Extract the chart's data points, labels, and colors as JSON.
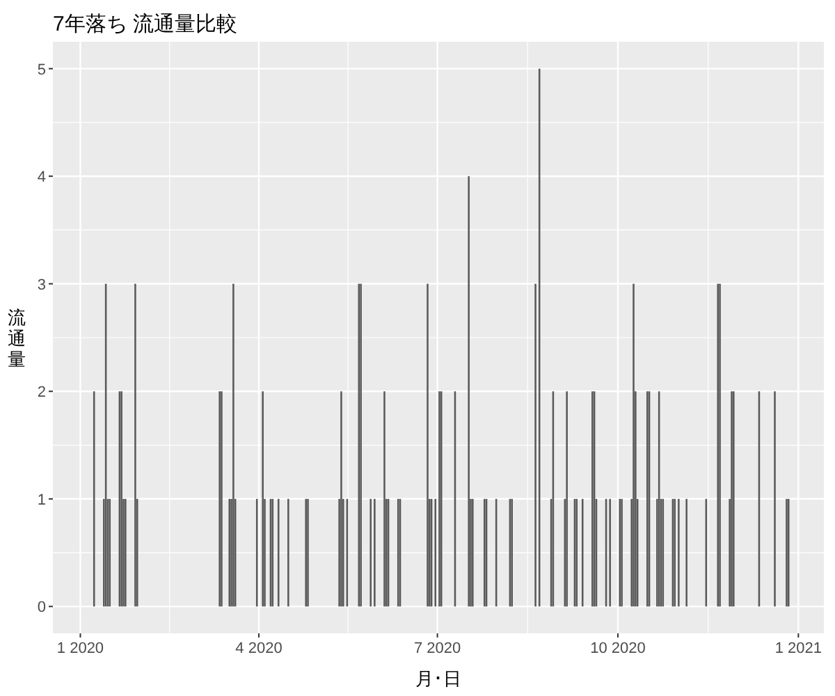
{
  "chart_data": {
    "type": "bar",
    "title": "7年落ち 流通量比較",
    "xlabel": "月･日",
    "ylabel": "流通量",
    "color": "#595959",
    "x": [
      "2020-01-08",
      "2020-01-13",
      "2020-01-14",
      "2020-01-15",
      "2020-01-16",
      "2020-01-21",
      "2020-01-22",
      "2020-01-23",
      "2020-01-24",
      "2020-01-29",
      "2020-01-30",
      "2020-03-12",
      "2020-03-13",
      "2020-03-17",
      "2020-03-18",
      "2020-03-19",
      "2020-03-20",
      "2020-03-31",
      "2020-04-03",
      "2020-04-04",
      "2020-04-07",
      "2020-04-08",
      "2020-04-11",
      "2020-04-16",
      "2020-04-25",
      "2020-04-26",
      "2020-05-12",
      "2020-05-13",
      "2020-05-14",
      "2020-05-16",
      "2020-05-22",
      "2020-05-23",
      "2020-05-28",
      "2020-05-30",
      "2020-06-04",
      "2020-06-05",
      "2020-06-06",
      "2020-06-11",
      "2020-06-12",
      "2020-06-26",
      "2020-06-27",
      "2020-06-28",
      "2020-06-30",
      "2020-07-02",
      "2020-07-03",
      "2020-07-10",
      "2020-07-17",
      "2020-07-18",
      "2020-07-19",
      "2020-07-25",
      "2020-07-26",
      "2020-07-31",
      "2020-08-07",
      "2020-08-08",
      "2020-08-20",
      "2020-08-22",
      "2020-08-28",
      "2020-08-29",
      "2020-09-04",
      "2020-09-05",
      "2020-09-09",
      "2020-09-10",
      "2020-09-13",
      "2020-09-18",
      "2020-09-19",
      "2020-09-20",
      "2020-09-25",
      "2020-09-27",
      "2020-10-02",
      "2020-10-03",
      "2020-10-08",
      "2020-10-09",
      "2020-10-10",
      "2020-10-11",
      "2020-10-16",
      "2020-10-17",
      "2020-10-21",
      "2020-10-22",
      "2020-10-23",
      "2020-10-24",
      "2020-10-29",
      "2020-10-30",
      "2020-11-01",
      "2020-11-05",
      "2020-11-15",
      "2020-11-21",
      "2020-11-22",
      "2020-11-27",
      "2020-11-28",
      "2020-11-29",
      "2020-12-12",
      "2020-12-20",
      "2020-12-26",
      "2020-12-27"
    ],
    "values": [
      2,
      1,
      3,
      1,
      1,
      2,
      2,
      1,
      1,
      3,
      1,
      2,
      2,
      1,
      1,
      3,
      1,
      1,
      2,
      1,
      1,
      1,
      1,
      1,
      1,
      1,
      1,
      2,
      1,
      1,
      3,
      3,
      1,
      1,
      2,
      1,
      1,
      1,
      1,
      3,
      1,
      1,
      1,
      2,
      2,
      2,
      4,
      1,
      1,
      1,
      1,
      1,
      1,
      1,
      3,
      5,
      1,
      2,
      1,
      2,
      1,
      1,
      1,
      2,
      2,
      1,
      1,
      1,
      1,
      1,
      1,
      3,
      2,
      1,
      2,
      2,
      1,
      2,
      1,
      1,
      1,
      1,
      1,
      1,
      1,
      3,
      3,
      1,
      2,
      2,
      2,
      2,
      1,
      1
    ],
    "xlim": [
      "2019-12-18",
      "2021-01-14"
    ],
    "xticks": [
      {
        "value": "2020-01-01",
        "label": "1 2020"
      },
      {
        "value": "2020-04-01",
        "label": "4 2020"
      },
      {
        "value": "2020-07-01",
        "label": "7 2020"
      },
      {
        "value": "2020-10-01",
        "label": "10 2020"
      },
      {
        "value": "2021-01-01",
        "label": "1 2021"
      }
    ],
    "ylim": [
      -0.25,
      5.25
    ],
    "yticks": [
      0,
      1,
      2,
      3,
      4,
      5
    ],
    "grid": true
  }
}
